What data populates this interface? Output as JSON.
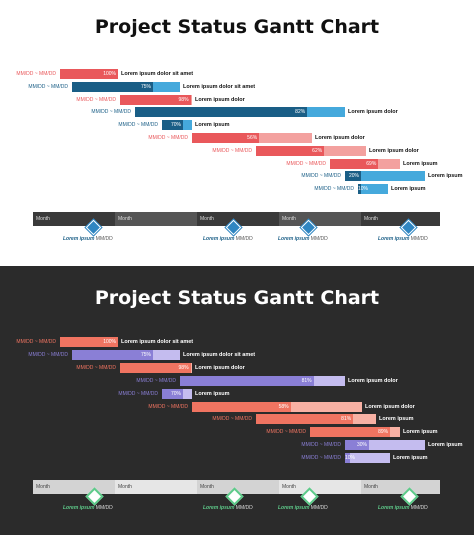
{
  "light": {
    "title": "Project Status Gantt Chart",
    "axis_months": [
      "Month",
      "Month",
      "Month",
      "Month",
      "Month"
    ],
    "milestones": [
      {
        "label": "Lorem ipsum",
        "date": "MM/DD"
      },
      {
        "label": "Lorem ipsum",
        "date": "MM/DD"
      },
      {
        "label": "Lorem ipsum",
        "date": "MM/DD"
      },
      {
        "label": "Lorem ipsum",
        "date": "MM/DD"
      }
    ],
    "tasks": [
      {
        "date": "MM/DD ~ MM/DD",
        "percent": "100%",
        "label": "Lorem ipsum dolor sit amet",
        "color": "red"
      },
      {
        "date": "MM/DD ~ MM/DD",
        "percent": "75%",
        "label": "Lorem ipsum dolor sit amet",
        "color": "blue"
      },
      {
        "date": "MM/DD ~ MM/DD",
        "percent": "98%",
        "label": "Lorem ipsum dolor",
        "color": "red"
      },
      {
        "date": "MM/DD ~ MM/DD",
        "percent": "82%",
        "label": "Lorem ipsum dolor",
        "color": "blue"
      },
      {
        "date": "MM/DD ~ MM/DD",
        "percent": "70%",
        "label": "Lorem ipsum",
        "color": "blue"
      },
      {
        "date": "MM/DD ~ MM/DD",
        "percent": "56%",
        "label": "Lorem ipsum dolor",
        "color": "red"
      },
      {
        "date": "MM/DD ~ MM/DD",
        "percent": "62%",
        "label": "Lorem ipsum dolor",
        "color": "red"
      },
      {
        "date": "MM/DD ~ MM/DD",
        "percent": "69%",
        "label": "Lorem ipsum",
        "color": "red"
      },
      {
        "date": "MM/DD ~ MM/DD",
        "percent": "20%",
        "label": "Lorem ipsum",
        "color": "blue"
      },
      {
        "date": "MM/DD ~ MM/DD",
        "percent": "10%",
        "label": "Lorem ipsum",
        "color": "blue"
      }
    ],
    "colors": {
      "red": "#e9585b",
      "red_light": "#f3a19f",
      "blue": "#1a5e86",
      "blue_light": "#45a9dc",
      "axis_dark": "#3a3a3a",
      "axis_mid": "#555555"
    }
  },
  "dark": {
    "title": "Project Status Gantt Chart",
    "axis_months": [
      "Month",
      "Month",
      "Month",
      "Month",
      "Month"
    ],
    "milestones": [
      {
        "label": "Lorem ipsum",
        "date": "MM/DD"
      },
      {
        "label": "Lorem ipsum",
        "date": "MM/DD"
      },
      {
        "label": "Lorem ipsum",
        "date": "MM/DD"
      },
      {
        "label": "Lorem ipsum",
        "date": "MM/DD"
      }
    ],
    "tasks": [
      {
        "date": "MM/DD ~ MM/DD",
        "percent": "100%",
        "label": "Lorem ipsum dolor sit amet",
        "color": "red"
      },
      {
        "date": "MM/DD ~ MM/DD",
        "percent": "75%",
        "label": "Lorem ipsum dolor sit amet",
        "color": "blue"
      },
      {
        "date": "MM/DD ~ MM/DD",
        "percent": "98%",
        "label": "Lorem ipsum dolor",
        "color": "red"
      },
      {
        "date": "MM/DD ~ MM/DD",
        "percent": "81%",
        "label": "Lorem ipsum dolor",
        "color": "blue"
      },
      {
        "date": "MM/DD ~ MM/DD",
        "percent": "70%",
        "label": "Lorem ipsum",
        "color": "blue"
      },
      {
        "date": "MM/DD ~ MM/DD",
        "percent": "58%",
        "label": "Lorem ipsum dolor",
        "color": "red"
      },
      {
        "date": "MM/DD ~ MM/DD",
        "percent": "81%",
        "label": "Lorem ipsum",
        "color": "red"
      },
      {
        "date": "MM/DD ~ MM/DD",
        "percent": "89%",
        "label": "Lorem ipsum",
        "color": "red"
      },
      {
        "date": "MM/DD ~ MM/DD",
        "percent": "30%",
        "label": "Lorem ipsum",
        "color": "blue"
      },
      {
        "date": "MM/DD ~ MM/DD",
        "percent": "10%",
        "label": "Lorem ipsum",
        "color": "blue"
      }
    ],
    "colors": {
      "red": "#f07461",
      "red_light": "#f8b1a4",
      "blue": "#8a7fd6",
      "blue_light": "#c4bcef",
      "axis_dark": "#d3d3d3",
      "axis_mid": "#e6e6e6",
      "milestone": "#5ecb8a"
    }
  }
}
